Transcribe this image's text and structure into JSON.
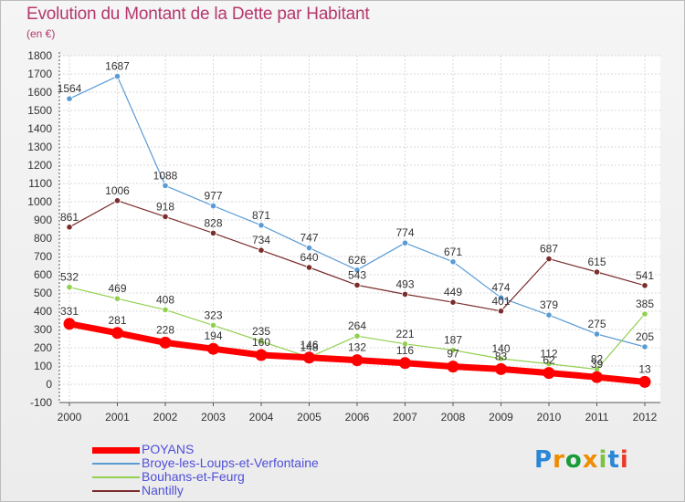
{
  "title": "Evolution du Montant de la Dette par Habitant",
  "unit": "(en €)",
  "brand": {
    "text": "Proxiti",
    "colors": [
      "#2a86d6",
      "#f08c00",
      "#1a9b3a",
      "#f08c00",
      "#7cc242",
      "#2a86d6",
      "#e83b2a"
    ]
  },
  "chart_data": {
    "type": "line",
    "title": "Evolution du Montant de la Dette par Habitant",
    "ylabel": "(en €)",
    "xlabel": "",
    "ylim": [
      -100,
      1800
    ],
    "yticks": [
      -100,
      0,
      100,
      200,
      300,
      400,
      500,
      600,
      700,
      800,
      900,
      1000,
      1100,
      1200,
      1300,
      1400,
      1500,
      1600,
      1700,
      1800
    ],
    "x": [
      "2000",
      "2001",
      "2002",
      "2003",
      "2004",
      "2005",
      "2006",
      "2007",
      "2008",
      "2009",
      "2010",
      "2011",
      "2012"
    ],
    "grid": true,
    "legend_position": "bottom-left",
    "series": [
      {
        "name": "POYANS",
        "color": "#ff0000",
        "highlight": true,
        "values": [
          331,
          281,
          228,
          194,
          160,
          146,
          132,
          116,
          97,
          83,
          62,
          39,
          13
        ]
      },
      {
        "name": "Broye-les-Loups-et-Verfontaine",
        "color": "#5b9bd5",
        "values": [
          1564,
          1687,
          1088,
          977,
          871,
          747,
          626,
          774,
          671,
          474,
          379,
          275,
          205
        ]
      },
      {
        "name": "Bouhans-et-Feurg",
        "color": "#92d050",
        "values": [
          532,
          469,
          408,
          323,
          235,
          148,
          264,
          221,
          187,
          140,
          112,
          82,
          385
        ]
      },
      {
        "name": "Nantilly",
        "color": "#7b2c2c",
        "values": [
          861,
          1006,
          918,
          828,
          734,
          640,
          543,
          493,
          449,
          401,
          687,
          615,
          541
        ]
      }
    ]
  }
}
